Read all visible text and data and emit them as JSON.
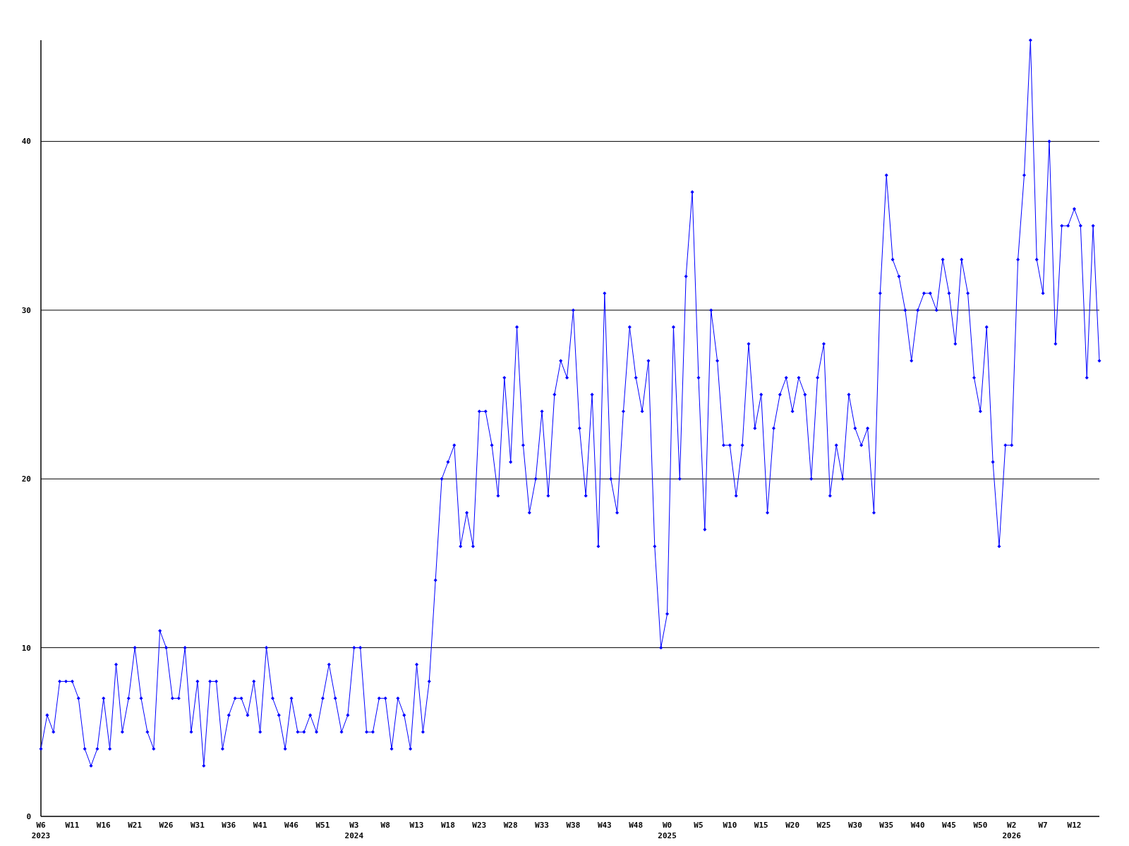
{
  "chart_data": {
    "type": "line",
    "categories": [
      "W6\n2023",
      null,
      null,
      null,
      null,
      "W11",
      null,
      null,
      null,
      null,
      "W16",
      null,
      null,
      null,
      null,
      "W21",
      null,
      null,
      null,
      null,
      "W26",
      null,
      null,
      null,
      null,
      "W31",
      null,
      null,
      null,
      null,
      "W36",
      null,
      null,
      null,
      null,
      "W41",
      null,
      null,
      null,
      null,
      "W46",
      null,
      null,
      null,
      null,
      "W51",
      null,
      null,
      null,
      null,
      "W3\n2024",
      null,
      null,
      null,
      null,
      "W8",
      null,
      null,
      null,
      null,
      "W13",
      null,
      null,
      null,
      null,
      "W18",
      null,
      null,
      null,
      null,
      "W23",
      null,
      null,
      null,
      null,
      "W28",
      null,
      null,
      null,
      null,
      "W33",
      null,
      null,
      null,
      null,
      "W38",
      null,
      null,
      null,
      null,
      "W43",
      null,
      null,
      null,
      null,
      "W48",
      null,
      null,
      null,
      null,
      "W0\n2025",
      null,
      null,
      null,
      null,
      "W5",
      null,
      null,
      null,
      null,
      "W10",
      null,
      null,
      null,
      null,
      "W15",
      null,
      null,
      null,
      null,
      "W20",
      null,
      null,
      null,
      null,
      "W25",
      null,
      null,
      null,
      null,
      "W30",
      null,
      null,
      null,
      null,
      "W35",
      null,
      null,
      null,
      null,
      "W40",
      null,
      null,
      null,
      null,
      "W45",
      null,
      null,
      null,
      null,
      "W50",
      null,
      null,
      null,
      null,
      "W2\n2026",
      null,
      null,
      null,
      null,
      "W7",
      null,
      null,
      null,
      null,
      "W12",
      null,
      null,
      null,
      null
    ],
    "series": [
      {
        "color": "#0000ff",
        "values": [
          4,
          6,
          5,
          8,
          8,
          8,
          7,
          4,
          3,
          4,
          7,
          4,
          9,
          5,
          7,
          10,
          7,
          5,
          4,
          11,
          10,
          7,
          7,
          10,
          5,
          8,
          3,
          8,
          8,
          4,
          6,
          7,
          7,
          6,
          8,
          5,
          10,
          7,
          6,
          4,
          7,
          5,
          5,
          6,
          5,
          7,
          9,
          7,
          5,
          6,
          10,
          10,
          5,
          5,
          7,
          7,
          4,
          7,
          6,
          4,
          9,
          5,
          8,
          14,
          20,
          21,
          22,
          16,
          18,
          16,
          24,
          24,
          22,
          19,
          26,
          21,
          29,
          22,
          18,
          20,
          24,
          19,
          25,
          27,
          26,
          30,
          23,
          19,
          25,
          16,
          31,
          20,
          18,
          24,
          29,
          26,
          24,
          27,
          16,
          10,
          12,
          29,
          20,
          32,
          37,
          26,
          17,
          30,
          27,
          22,
          22,
          19,
          22,
          28,
          23,
          25,
          18,
          23,
          25,
          26,
          24,
          26,
          25,
          20,
          26,
          28,
          19,
          22,
          20,
          25,
          23,
          22,
          23,
          18,
          31,
          38,
          33,
          32,
          30,
          27,
          30,
          31,
          31,
          30,
          33,
          31,
          28,
          33,
          31,
          26,
          24,
          29,
          21,
          16,
          22,
          22,
          33,
          38,
          46,
          33,
          31,
          40,
          28,
          35,
          35,
          36,
          35,
          26,
          35,
          27
        ]
      }
    ],
    "ylim": [
      0,
      46
    ],
    "yticks": [
      0,
      10,
      20,
      30,
      40
    ],
    "grid": "y",
    "marker": "diamond",
    "line_style": "solid"
  }
}
